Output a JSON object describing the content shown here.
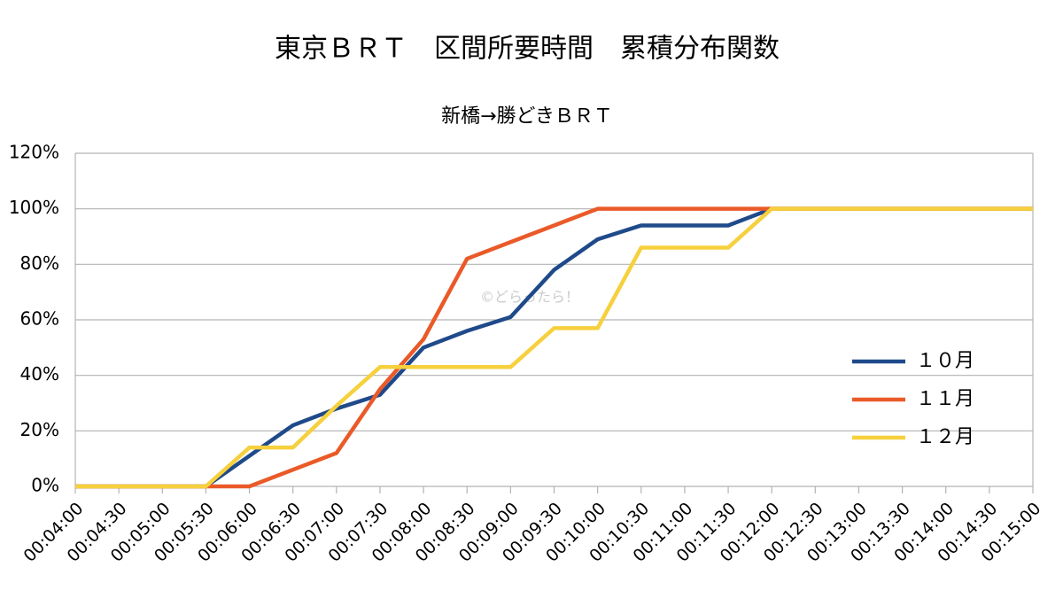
{
  "chart_data": {
    "type": "line",
    "title": "東京ＢＲＴ　区間所要時間　累積分布関数",
    "subtitle": "新橋→勝どきＢＲＴ",
    "annotation": "©どらったら！",
    "categories": [
      "00:04:00",
      "00:04:30",
      "00:05:00",
      "00:05:30",
      "00:06:00",
      "00:06:30",
      "00:07:00",
      "00:07:30",
      "00:08:00",
      "00:08:30",
      "00:09:00",
      "00:09:30",
      "00:10:00",
      "00:10:30",
      "00:11:00",
      "00:11:30",
      "00:12:00",
      "00:12:30",
      "00:13:00",
      "00:13:30",
      "00:14:00",
      "00:14:30",
      "00:15:00"
    ],
    "series": [
      {
        "name": "１０月",
        "color": "#1f4a8a",
        "values": [
          0,
          0,
          0,
          0,
          11,
          22,
          28,
          33,
          50,
          56,
          61,
          78,
          89,
          94,
          94,
          94,
          100,
          100,
          100,
          100,
          100,
          100,
          100
        ]
      },
      {
        "name": "１１月",
        "color": "#ea5a28",
        "values": [
          0,
          0,
          0,
          0,
          0,
          6,
          12,
          35,
          53,
          82,
          88,
          94,
          100,
          100,
          100,
          100,
          100,
          100,
          100,
          100,
          100,
          100,
          100
        ]
      },
      {
        "name": "１２月",
        "color": "#f6d03d",
        "values": [
          0,
          0,
          0,
          0,
          14,
          14,
          29,
          43,
          43,
          43,
          43,
          57,
          57,
          86,
          86,
          86,
          100,
          100,
          100,
          100,
          100,
          100,
          100
        ]
      }
    ],
    "ylim": [
      0,
      120
    ],
    "yticks": [
      {
        "value": 0,
        "label": "0%"
      },
      {
        "value": 20,
        "label": "20%"
      },
      {
        "value": 40,
        "label": "40%"
      },
      {
        "value": 60,
        "label": "60%"
      },
      {
        "value": 80,
        "label": "80%"
      },
      {
        "value": 100,
        "label": "100%"
      },
      {
        "value": 120,
        "label": "120%"
      }
    ],
    "grid": true,
    "legend": "right"
  }
}
